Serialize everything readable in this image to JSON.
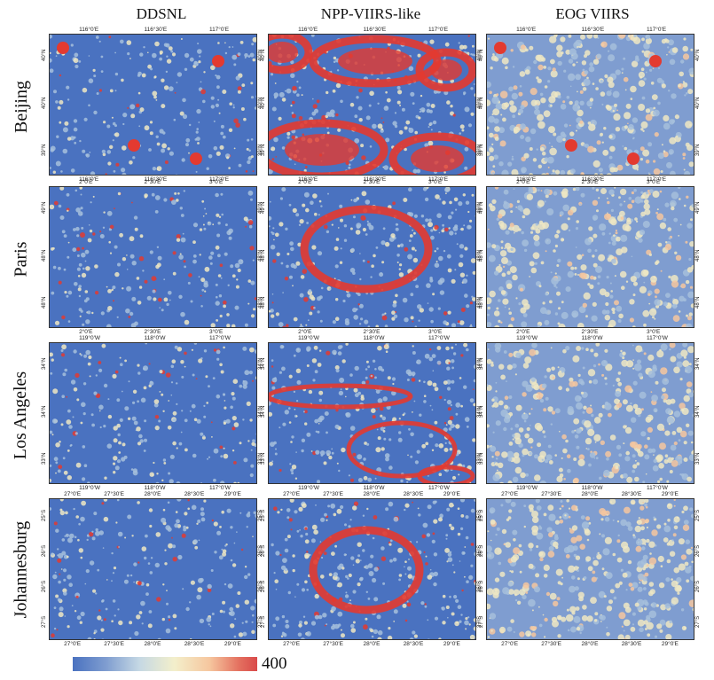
{
  "columns": [
    "DDSNL",
    "NPP-VIIRS-like",
    "EOG VIIRS"
  ],
  "rows": [
    {
      "name": "Beijing",
      "xticks": [
        "116°0'E",
        "116°30'E",
        "117°0'E"
      ],
      "yticks": [
        "40°N",
        "40°N",
        "39°N"
      ]
    },
    {
      "name": "Paris",
      "xticks": [
        "2°0'E",
        "2°30'E",
        "3°0'E"
      ],
      "yticks": [
        "49°N",
        "48°N",
        "48°N"
      ]
    },
    {
      "name": "Los Angeles",
      "xticks": [
        "119°0'W",
        "118°0'W",
        "117°0'W"
      ],
      "yticks": [
        "34°N",
        "34°N",
        "33°N"
      ]
    },
    {
      "name": "Johannesburg",
      "xticks": [
        "27°0'E",
        "27°30'E",
        "28°0'E",
        "28°30'E",
        "29°0'E"
      ],
      "yticks": [
        "25°S",
        "26°S",
        "26°S",
        "27°S"
      ]
    }
  ],
  "colorbar": {
    "max_label": "400",
    "colors": [
      "#4a72c0",
      "#c5d8e4",
      "#f3efcb",
      "#f6c79f",
      "#d94a4a"
    ]
  },
  "panel_palette": {
    "base": "#4a72c0",
    "mid": "#a6bfdc",
    "light": "#efe8c3",
    "hot": "#e33a30"
  }
}
